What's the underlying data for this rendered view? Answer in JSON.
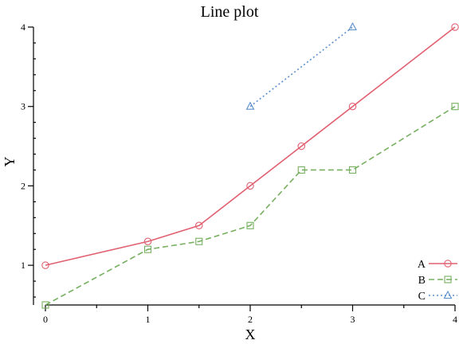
{
  "chart_data": {
    "type": "line",
    "title": "Line plot",
    "xlabel": "X",
    "ylabel": "Y",
    "xlim": [
      0,
      4
    ],
    "ylim": [
      0.5,
      4
    ],
    "x_ticks": [
      0,
      1,
      2,
      3,
      4
    ],
    "y_ticks": [
      1,
      2,
      3,
      4
    ],
    "grid": false,
    "legend": "bottom-right",
    "series": [
      {
        "name": "A",
        "color": "#e06070",
        "dash": "solid",
        "marker": "circle",
        "x": [
          0,
          1,
          1.5,
          2,
          2.5,
          3,
          4
        ],
        "y": [
          1.0,
          1.3,
          1.5,
          2.0,
          2.5,
          3.0,
          4.0
        ]
      },
      {
        "name": "B",
        "color": "#77b060",
        "dash": "dashed",
        "marker": "square",
        "x": [
          0,
          1,
          1.5,
          2,
          2.5,
          3,
          4
        ],
        "y": [
          0.5,
          1.2,
          1.3,
          1.5,
          2.2,
          2.2,
          3.0
        ]
      },
      {
        "name": "C",
        "color": "#5b8fd0",
        "dash": "dotted",
        "marker": "triangle",
        "x": [
          2,
          3
        ],
        "y": [
          3.0,
          4.0
        ]
      }
    ]
  }
}
